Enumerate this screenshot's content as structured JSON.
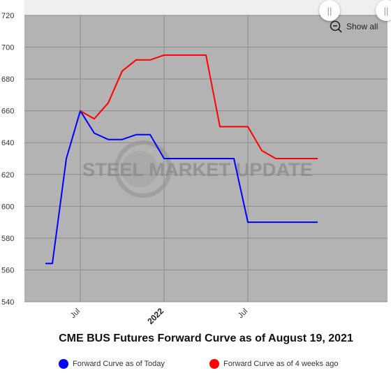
{
  "chart_data": {
    "type": "line",
    "title": "CME BUS Futures Forward Curve as of August 19, 2021",
    "xlabel": "",
    "ylabel": "",
    "xlim": [
      0,
      26
    ],
    "ylim": [
      540,
      720
    ],
    "yticks": [
      540,
      560,
      580,
      600,
      620,
      640,
      660,
      680,
      700,
      720
    ],
    "xticks": [
      {
        "x": 4,
        "label": "Jul",
        "bold": false
      },
      {
        "x": 10,
        "label": "2022",
        "bold": true
      },
      {
        "x": 16,
        "label": "Jul",
        "bold": false
      }
    ],
    "grid": true,
    "legend_position": "bottom",
    "series": [
      {
        "name": "Forward Curve as of Today",
        "color": "#0000ff",
        "x": [
          1.5,
          2,
          3,
          4,
          5,
          6,
          7,
          8,
          9,
          10,
          11,
          12,
          13,
          14,
          15,
          16,
          17,
          18,
          19,
          20,
          21
        ],
        "values": [
          564,
          564,
          630,
          660,
          646,
          642,
          642,
          645,
          645,
          630,
          630,
          630,
          630,
          630,
          630,
          590,
          590,
          590,
          590,
          590,
          590
        ]
      },
      {
        "name": "Forward Curve as of 4 weeks ago",
        "color": "#ff0000",
        "x": [
          4,
          5,
          6,
          7,
          8,
          9,
          10,
          11,
          12,
          13,
          14,
          15,
          16,
          17,
          18,
          19,
          20,
          21
        ],
        "values": [
          660,
          655,
          665,
          685,
          692,
          692,
          695,
          695,
          695,
          695,
          650,
          650,
          650,
          635,
          630,
          630,
          630,
          630
        ]
      }
    ]
  },
  "watermark": "STEEL MARKET UPDATE",
  "controls": {
    "show_all_label": "Show all",
    "handle_glyph": "||"
  },
  "colors": {
    "plot_background": "#b3b3b3",
    "navigator_background": "#efefef",
    "grid": "#8c8c8c"
  }
}
